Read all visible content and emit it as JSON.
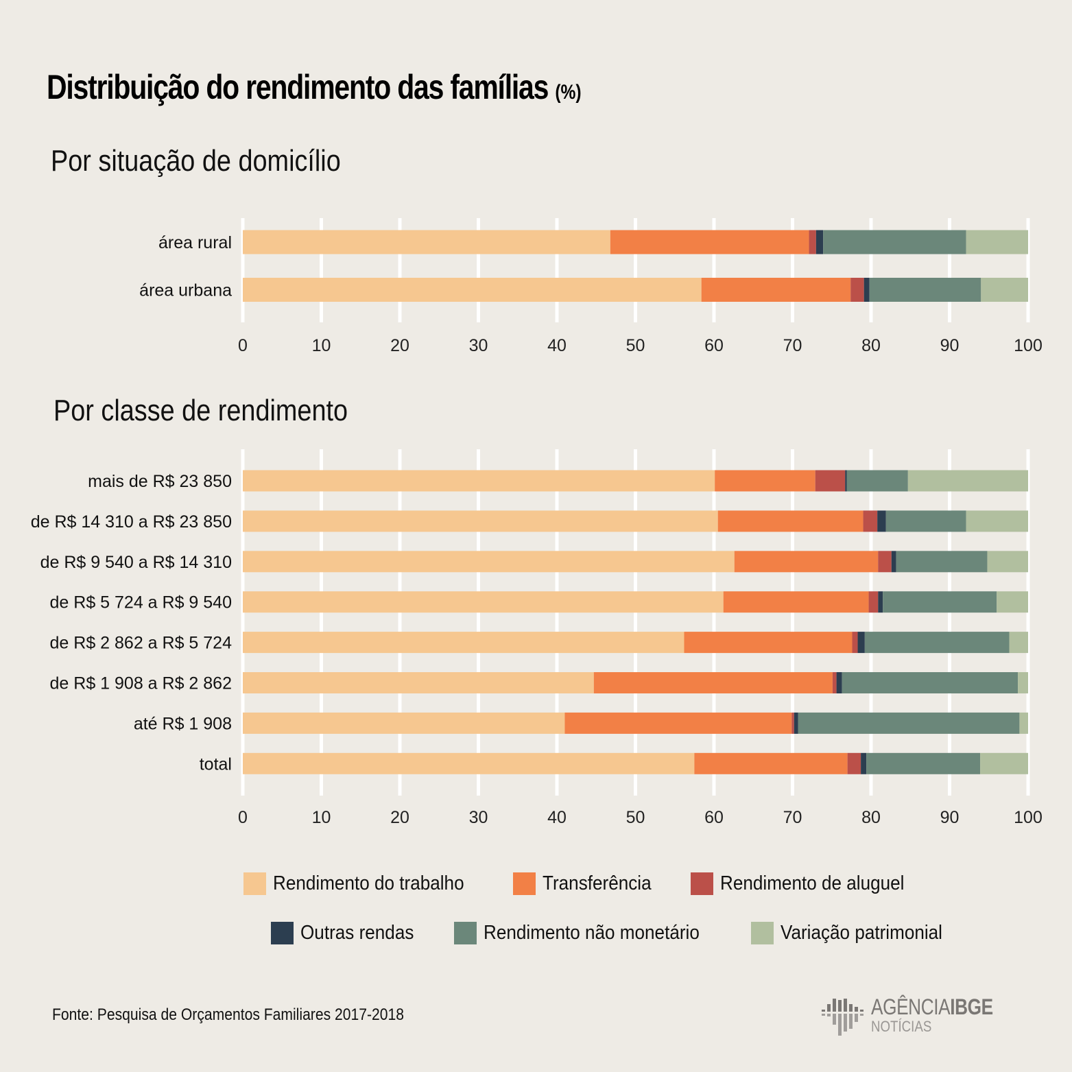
{
  "title": "Distribuição do rendimento das famílias",
  "title_unit": "(%)",
  "colors": {
    "background": "#eeebe5",
    "gridline": "#ffffff",
    "Rendimento do trabalho": "#f6c790",
    "Transferência": "#f28046",
    "Rendimento de aluguel": "#bb5049",
    "Outras rendas": "#2c3e50",
    "Rendimento não monetário": "#6b877a",
    "Variação patrimonial": "#b1bf9f"
  },
  "chart_data": [
    {
      "type": "bar",
      "orientation": "horizontal",
      "stacked": true,
      "title": "Por situação de domicílio",
      "xlabel": "",
      "ylabel": "",
      "xlim": [
        0,
        100
      ],
      "xticks": [
        0,
        10,
        20,
        30,
        40,
        50,
        60,
        70,
        80,
        90,
        100
      ],
      "grid": true,
      "categories": [
        "área rural",
        "área urbana"
      ],
      "series": [
        {
          "name": "Rendimento do trabalho",
          "values": [
            46.8,
            58.4
          ]
        },
        {
          "name": "Transferência",
          "values": [
            25.3,
            19.0
          ]
        },
        {
          "name": "Rendimento de aluguel",
          "values": [
            0.9,
            1.7
          ]
        },
        {
          "name": "Outras rendas",
          "values": [
            0.9,
            0.7
          ]
        },
        {
          "name": "Rendimento não monetário",
          "values": [
            18.2,
            14.2
          ]
        },
        {
          "name": "Variação patrimonial",
          "values": [
            7.9,
            6.0
          ]
        }
      ]
    },
    {
      "type": "bar",
      "orientation": "horizontal",
      "stacked": true,
      "title": "Por classe de rendimento",
      "xlabel": "",
      "ylabel": "",
      "xlim": [
        0,
        100
      ],
      "xticks": [
        0,
        10,
        20,
        30,
        40,
        50,
        60,
        70,
        80,
        90,
        100
      ],
      "grid": true,
      "categories": [
        "mais de R$ 23 850",
        "de R$ 14 310 a R$ 23 850",
        "de R$ 9 540 a R$ 14 310",
        "de R$ 5 724 a R$ 9 540",
        "de R$ 2 862 a R$ 5 724",
        "de R$ 1 908 a R$ 2 862",
        "até R$ 1 908",
        "total"
      ],
      "series": [
        {
          "name": "Rendimento do trabalho",
          "values": [
            60.1,
            60.5,
            62.6,
            61.2,
            56.2,
            44.7,
            41.0,
            57.5
          ]
        },
        {
          "name": "Transferência",
          "values": [
            12.8,
            18.5,
            18.3,
            18.5,
            21.4,
            30.4,
            28.9,
            19.5
          ]
        },
        {
          "name": "Rendimento de aluguel",
          "values": [
            3.8,
            1.8,
            1.7,
            1.2,
            0.7,
            0.5,
            0.3,
            1.7
          ]
        },
        {
          "name": "Outras rendas",
          "values": [
            0.2,
            1.1,
            0.6,
            0.6,
            0.9,
            0.7,
            0.5,
            0.7
          ]
        },
        {
          "name": "Rendimento não monetário",
          "values": [
            7.8,
            10.2,
            11.6,
            14.5,
            18.4,
            22.4,
            28.2,
            14.5
          ]
        },
        {
          "name": "Variação patrimonial",
          "values": [
            15.3,
            7.9,
            5.2,
            4.0,
            2.4,
            1.3,
            1.1,
            6.1
          ]
        }
      ]
    }
  ],
  "legend": {
    "rows": [
      [
        "Rendimento do trabalho",
        "Transferência",
        "Rendimento de aluguel"
      ],
      [
        "Outras rendas",
        "Rendimento não monetário",
        "Variação patrimonial"
      ]
    ]
  },
  "source": "Fonte:  Pesquisa de Orçamentos Familiares 2017-2018",
  "logo": {
    "name_light": "AGÊNCIA",
    "name_bold": "IBGE",
    "sub": "NOTÍCIAS"
  }
}
